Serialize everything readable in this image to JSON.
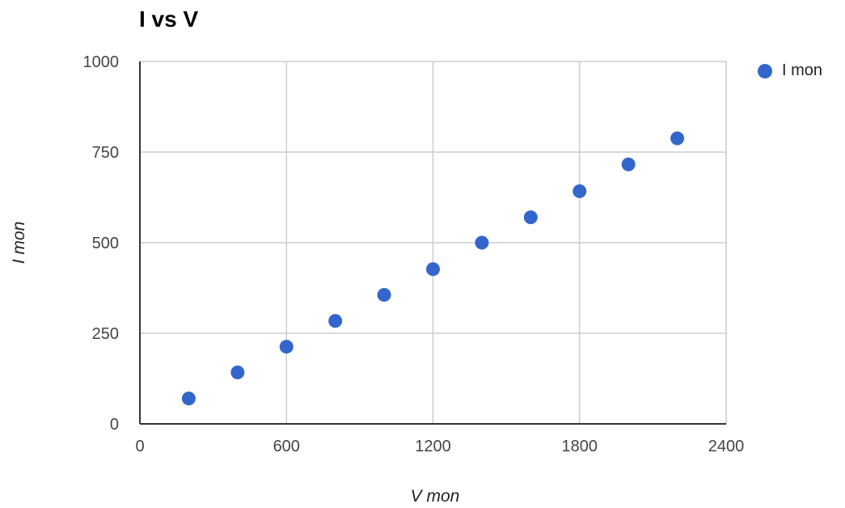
{
  "chart_data": {
    "type": "scatter",
    "title": "I vs V",
    "xlabel": "V mon",
    "ylabel": "I mon",
    "xlim": [
      0,
      2400
    ],
    "ylim": [
      0,
      1000
    ],
    "xticks": [
      0,
      600,
      1200,
      1800,
      2400
    ],
    "yticks": [
      0,
      250,
      500,
      750,
      1000
    ],
    "xtick_labels": [
      "0",
      "600",
      "1200",
      "1800",
      "2400"
    ],
    "ytick_labels": [
      "0",
      "250",
      "500",
      "750",
      "1000"
    ],
    "grid": true,
    "legend_position": "right",
    "series": [
      {
        "name": "I mon",
        "color": "#3366cc",
        "x": [
          200,
          400,
          600,
          800,
          1000,
          1200,
          1400,
          1600,
          1800,
          2000,
          2200
        ],
        "y": [
          70,
          142,
          213,
          284,
          356,
          427,
          500,
          570,
          642,
          716,
          788
        ]
      }
    ]
  }
}
